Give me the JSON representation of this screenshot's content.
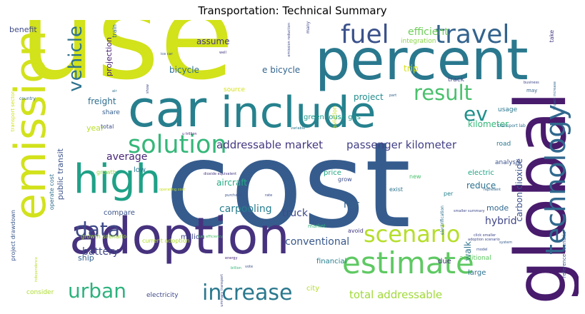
{
  "title": "Transportation: Technical Summary",
  "palette": {
    "yellow": "#d2e21b",
    "lime": "#a0da39",
    "green": "#4ac16d",
    "teal": "#1fa187",
    "cyan": "#277f8e",
    "blue": "#365c8d",
    "indigo": "#46327e",
    "purple": "#440154"
  },
  "words": [
    {
      "text": "use",
      "color": "#d2e21b"
    },
    {
      "text": "cost",
      "color": "#365c8d"
    },
    {
      "text": "percent",
      "color": "#2a788e"
    },
    {
      "text": "global",
      "color": "#481b6d"
    },
    {
      "text": "car",
      "color": "#277f8e"
    },
    {
      "text": "include",
      "color": "#26828e"
    },
    {
      "text": "adoption",
      "color": "#46327e"
    },
    {
      "text": "emission",
      "color": "#d2e21b"
    },
    {
      "text": "high",
      "color": "#1fa187"
    },
    {
      "text": "estimate",
      "color": "#5ec962"
    },
    {
      "text": "technology",
      "color": "#31688e"
    },
    {
      "text": "fuel",
      "color": "#3b528b"
    },
    {
      "text": "travel",
      "color": "#33638d"
    },
    {
      "text": "solution",
      "color": "#35b779"
    },
    {
      "text": "result",
      "color": "#4ac16d"
    },
    {
      "text": "scenario",
      "color": "#b5de2b"
    },
    {
      "text": "vehicle",
      "color": "#2c728e"
    },
    {
      "text": "data",
      "color": "#3e4989"
    },
    {
      "text": "urban",
      "color": "#2db27d"
    },
    {
      "text": "increase",
      "color": "#2a788e"
    },
    {
      "text": "ev",
      "color": "#21918c"
    },
    {
      "text": "addressable market",
      "color": "#453781"
    },
    {
      "text": "passenger kilometer",
      "color": "#424086"
    },
    {
      "text": "total addressable",
      "color": "#a0da39"
    },
    {
      "text": "carbon dioxide",
      "color": "#3b528b"
    },
    {
      "text": "average",
      "color": "#482677"
    },
    {
      "text": "conventional",
      "color": "#38588c"
    },
    {
      "text": "efficient",
      "color": "#6ece58"
    },
    {
      "text": "carpooling",
      "color": "#287d8e"
    },
    {
      "text": "battery",
      "color": "#3f4788"
    },
    {
      "text": "hybrid",
      "color": "#404688"
    },
    {
      "text": "truck",
      "color": "#3e4a89"
    },
    {
      "text": "hsr",
      "color": "#34618d"
    },
    {
      "text": "aircraft",
      "color": "#25ab82"
    },
    {
      "text": "bicycle",
      "color": "#2e6f8e"
    },
    {
      "text": "e bicycle",
      "color": "#32658e"
    },
    {
      "text": "freight",
      "color": "#2e6e8e"
    },
    {
      "text": "assume",
      "color": "#443983"
    },
    {
      "text": "project",
      "color": "#228c8d"
    },
    {
      "text": "reduce",
      "color": "#2c718e"
    },
    {
      "text": "kilometer",
      "color": "#35b779"
    },
    {
      "text": "trip",
      "color": "#d8e219"
    },
    {
      "text": "projection",
      "color": "#482173"
    },
    {
      "text": "public transit",
      "color": "#3b528b"
    },
    {
      "text": "benefit",
      "color": "#3e4989"
    },
    {
      "text": "walk",
      "color": "#2c728e"
    },
    {
      "text": "mode",
      "color": "#31688e"
    },
    {
      "text": "ship",
      "color": "#35608d"
    },
    {
      "text": "year",
      "color": "#b8de29"
    },
    {
      "text": "greenhouse gas",
      "color": "#1f988b"
    },
    {
      "text": "electric",
      "color": "#21a585"
    },
    {
      "text": "million",
      "color": "#404688"
    },
    {
      "text": "compare",
      "color": "#3a548c"
    },
    {
      "text": "low",
      "color": "#2a768e"
    },
    {
      "text": "price",
      "color": "#22a884"
    },
    {
      "text": "financial",
      "color": "#277f8e"
    },
    {
      "text": "additional",
      "color": "#5ec962"
    },
    {
      "text": "large",
      "color": "#2d708e"
    },
    {
      "text": "due",
      "color": "#472c7a"
    },
    {
      "text": "city",
      "color": "#b5de2b"
    },
    {
      "text": "electricity",
      "color": "#3e4989"
    },
    {
      "text": "consider",
      "color": "#addc30"
    },
    {
      "text": "road",
      "color": "#2a788e"
    },
    {
      "text": "analysis",
      "color": "#3b528b"
    },
    {
      "text": "integration",
      "color": "#8bd646"
    },
    {
      "text": "track",
      "color": "#3f4788"
    },
    {
      "text": "usage",
      "color": "#2a788e"
    },
    {
      "text": "source",
      "color": "#d5e21a"
    },
    {
      "text": "share",
      "color": "#355f8d"
    },
    {
      "text": "total",
      "color": "#3b528b"
    },
    {
      "text": "growth",
      "color": "#95d840"
    },
    {
      "text": "growth scenario",
      "color": "#a5db36"
    },
    {
      "text": "operate cost",
      "color": "#2e6e8e"
    },
    {
      "text": "current adoption",
      "color": "#b2dd2d"
    },
    {
      "text": "project drawdown",
      "color": "#39568c"
    },
    {
      "text": "aviation",
      "color": "#c2df23"
    },
    {
      "text": "grow",
      "color": "#3d4e8a"
    },
    {
      "text": "per",
      "color": "#25848e"
    },
    {
      "text": "avoid",
      "color": "#443a83"
    },
    {
      "text": "exist",
      "color": "#2b748e"
    },
    {
      "text": "new",
      "color": "#4ac16d"
    },
    {
      "text": "market",
      "color": "#32b67a"
    },
    {
      "text": "train",
      "color": "#2f6b8e"
    },
    {
      "text": "transport sector",
      "color": "#d0e11c"
    },
    {
      "text": "country",
      "color": "#31688e"
    },
    {
      "text": "take",
      "color": "#453882"
    },
    {
      "text": "may",
      "color": "#33638d"
    },
    {
      "text": "many",
      "color": "#3f4788"
    },
    {
      "text": "reference scenario",
      "color": "#3b528b"
    },
    {
      "text": "electrification",
      "color": "#2e6e8e"
    },
    {
      "text": "emission reduction",
      "color": "#3e4989"
    },
    {
      "text": "transport lab",
      "color": "#2c728e"
    },
    {
      "text": "click smaller",
      "color": "#3f4788"
    },
    {
      "text": "system",
      "color": "#365c8d"
    },
    {
      "text": "represent",
      "color": "#31688e"
    },
    {
      "text": "model",
      "color": "#3b528b"
    },
    {
      "text": "adoption scenario",
      "color": "#3e4989"
    },
    {
      "text": "u trillion",
      "color": "#482878"
    },
    {
      "text": "dioxide equivalent",
      "color": "#453781"
    },
    {
      "text": "fuel efficiency",
      "color": "#4ac16d"
    },
    {
      "text": "operating cost",
      "color": "#c8e020"
    },
    {
      "text": "purchase",
      "color": "#3b528b"
    },
    {
      "text": "variable",
      "color": "#2a788e"
    },
    {
      "text": "smaller summary",
      "color": "#3e4989"
    },
    {
      "text": "business",
      "color": "#3f4788"
    },
    {
      "text": "impact increase",
      "color": "#31688e"
    },
    {
      "text": "ice car",
      "color": "#3b528b"
    },
    {
      "text": "well",
      "color": "#453781"
    },
    {
      "text": "part",
      "color": "#33638d"
    },
    {
      "text": "rate",
      "color": "#3e4989"
    },
    {
      "text": "energy",
      "color": "#482677"
    },
    {
      "text": "summary transport",
      "color": "#3f4788"
    },
    {
      "text": "independence",
      "color": "#b5de2b"
    },
    {
      "text": "billion",
      "color": "#35b779"
    },
    {
      "text": "vote",
      "color": "#3b528b"
    },
    {
      "text": "show",
      "color": "#3e4989"
    },
    {
      "text": "air",
      "color": "#2c728e"
    }
  ]
}
